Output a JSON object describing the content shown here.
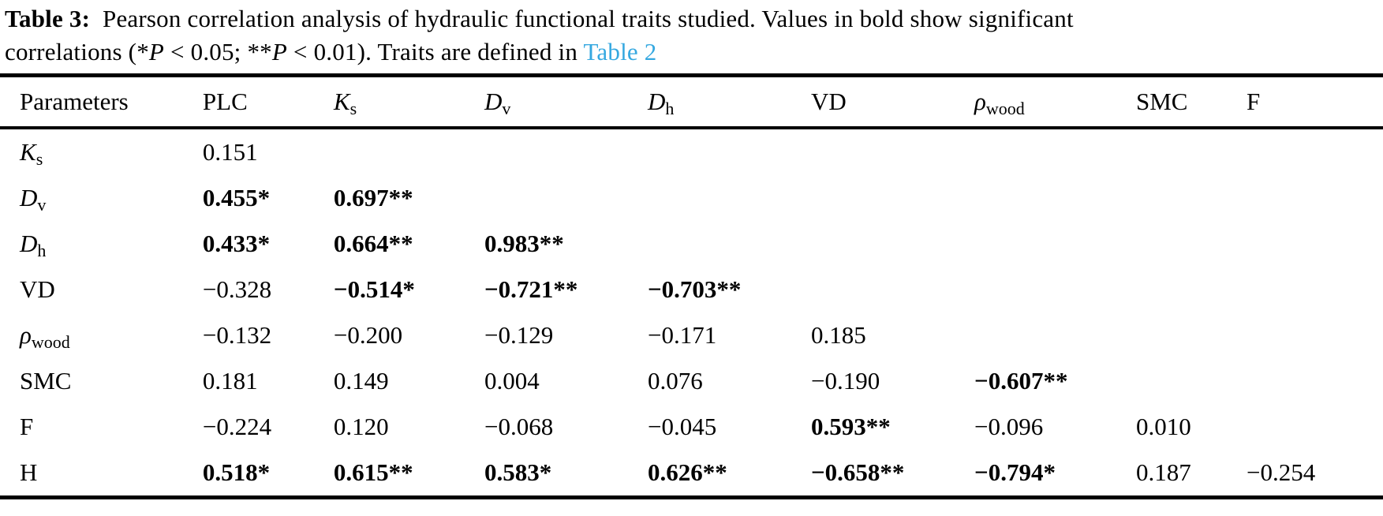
{
  "accent_link_color": "#35a8e0",
  "caption": {
    "segments": [
      {
        "text": "Table 3:",
        "style": "bold"
      },
      {
        "text": "  Pearson correlation analysis of hydraulic functional traits studied. Values in bold show significant",
        "style": "normal",
        "br": true
      },
      {
        "text": "correlations (*",
        "style": "normal"
      },
      {
        "text": "P",
        "style": "italic"
      },
      {
        "text": " < 0.05; **",
        "style": "normal"
      },
      {
        "text": "P",
        "style": "italic"
      },
      {
        "text": " < 0.01). Traits are defined in ",
        "style": "normal"
      },
      {
        "text": "Table 2",
        "style": "link"
      }
    ]
  },
  "table": {
    "headers": [
      {
        "label": "Parameters"
      },
      {
        "label": "PLC"
      },
      {
        "label": "K",
        "sub": "s",
        "italic": true
      },
      {
        "label": "D",
        "sub": "v",
        "italic": true
      },
      {
        "label": "D",
        "sub": "h",
        "italic": true
      },
      {
        "label": "VD"
      },
      {
        "label": "ρ",
        "sub": "wood",
        "italic": true
      },
      {
        "label": "SMC"
      },
      {
        "label": "F"
      }
    ],
    "rows": [
      {
        "label": {
          "label": "K",
          "sub": "s",
          "italic": true
        },
        "cells": [
          {
            "value": "0.151"
          }
        ]
      },
      {
        "label": {
          "label": "D",
          "sub": "v",
          "italic": true
        },
        "cells": [
          {
            "value": "0.455",
            "stars": "*",
            "bold": true
          },
          {
            "value": "0.697",
            "stars": "**",
            "bold": true
          }
        ]
      },
      {
        "label": {
          "label": "D",
          "sub": "h",
          "italic": true
        },
        "cells": [
          {
            "value": "0.433",
            "stars": "*",
            "bold": true
          },
          {
            "value": "0.664",
            "stars": "**",
            "bold": true
          },
          {
            "value": "0.983",
            "stars": "**",
            "bold": true
          }
        ]
      },
      {
        "label": {
          "label": "VD"
        },
        "cells": [
          {
            "value": "−0.328"
          },
          {
            "value": "−0.514",
            "stars": "*",
            "bold": true
          },
          {
            "value": "−0.721",
            "stars": "**",
            "bold": true
          },
          {
            "value": "−0.703",
            "stars": "**",
            "bold": true
          }
        ]
      },
      {
        "label": {
          "label": "ρ",
          "sub": "wood",
          "italic": true
        },
        "cells": [
          {
            "value": "−0.132"
          },
          {
            "value": "−0.200"
          },
          {
            "value": "−0.129"
          },
          {
            "value": "−0.171"
          },
          {
            "value": "0.185"
          }
        ]
      },
      {
        "label": {
          "label": "SMC"
        },
        "cells": [
          {
            "value": "0.181"
          },
          {
            "value": "0.149"
          },
          {
            "value": "0.004"
          },
          {
            "value": "0.076"
          },
          {
            "value": "−0.190"
          },
          {
            "value": "−0.607",
            "stars": "**",
            "bold": true
          }
        ]
      },
      {
        "label": {
          "label": "F"
        },
        "cells": [
          {
            "value": "−0.224"
          },
          {
            "value": "0.120"
          },
          {
            "value": "−0.068"
          },
          {
            "value": "−0.045"
          },
          {
            "value": "0.593",
            "stars": "**",
            "bold": true
          },
          {
            "value": "−0.096"
          },
          {
            "value": "0.010"
          }
        ]
      },
      {
        "label": {
          "label": "H"
        },
        "cells": [
          {
            "value": "0.518",
            "stars": "*",
            "bold": true
          },
          {
            "value": "0.615",
            "stars": "**",
            "bold": true
          },
          {
            "value": "0.583",
            "stars": "*",
            "bold": true
          },
          {
            "value": "0.626",
            "stars": "**",
            "bold": true
          },
          {
            "value": "−0.658",
            "stars": "**",
            "bold": true
          },
          {
            "value": "−0.794",
            "stars": "*",
            "bold": true
          },
          {
            "value": "0.187"
          },
          {
            "value": "−0.254"
          }
        ]
      }
    ]
  }
}
